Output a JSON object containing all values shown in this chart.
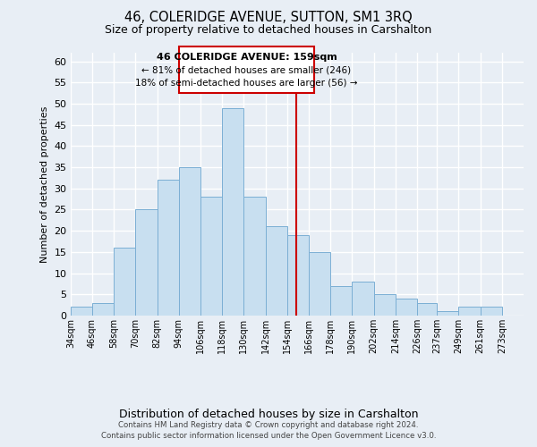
{
  "title": "46, COLERIDGE AVENUE, SUTTON, SM1 3RQ",
  "subtitle": "Size of property relative to detached houses in Carshalton",
  "xlabel": "Distribution of detached houses by size in Carshalton",
  "ylabel": "Number of detached properties",
  "bin_labels": [
    "34sqm",
    "46sqm",
    "58sqm",
    "70sqm",
    "82sqm",
    "94sqm",
    "106sqm",
    "118sqm",
    "130sqm",
    "142sqm",
    "154sqm",
    "166sqm",
    "178sqm",
    "190sqm",
    "202sqm",
    "214sqm",
    "226sqm",
    "237sqm",
    "249sqm",
    "261sqm",
    "273sqm"
  ],
  "bar_heights": [
    2,
    3,
    16,
    25,
    32,
    35,
    28,
    49,
    28,
    21,
    19,
    15,
    7,
    8,
    5,
    4,
    3,
    1,
    2,
    2,
    0
  ],
  "bar_color": "#c8dff0",
  "bar_edge_color": "#7bafd4",
  "vline_x": 159,
  "vline_color": "#cc0000",
  "bin_edges": [
    34,
    46,
    58,
    70,
    82,
    94,
    106,
    118,
    130,
    142,
    154,
    166,
    178,
    190,
    202,
    214,
    226,
    237,
    249,
    261,
    273,
    285
  ],
  "ylim": [
    0,
    62
  ],
  "yticks": [
    0,
    5,
    10,
    15,
    20,
    25,
    30,
    35,
    40,
    45,
    50,
    55,
    60
  ],
  "annotation_title": "46 COLERIDGE AVENUE: 159sqm",
  "annotation_line1": "← 81% of detached houses are smaller (246)",
  "annotation_line2": "18% of semi-detached houses are larger (56) →",
  "annotation_box_color": "#ffffff",
  "annotation_box_edge": "#cc0000",
  "footer_line1": "Contains HM Land Registry data © Crown copyright and database right 2024.",
  "footer_line2": "Contains public sector information licensed under the Open Government Licence v3.0.",
  "background_color": "#e8eef5",
  "plot_bg_color": "#e8eef5",
  "grid_color": "#ffffff"
}
